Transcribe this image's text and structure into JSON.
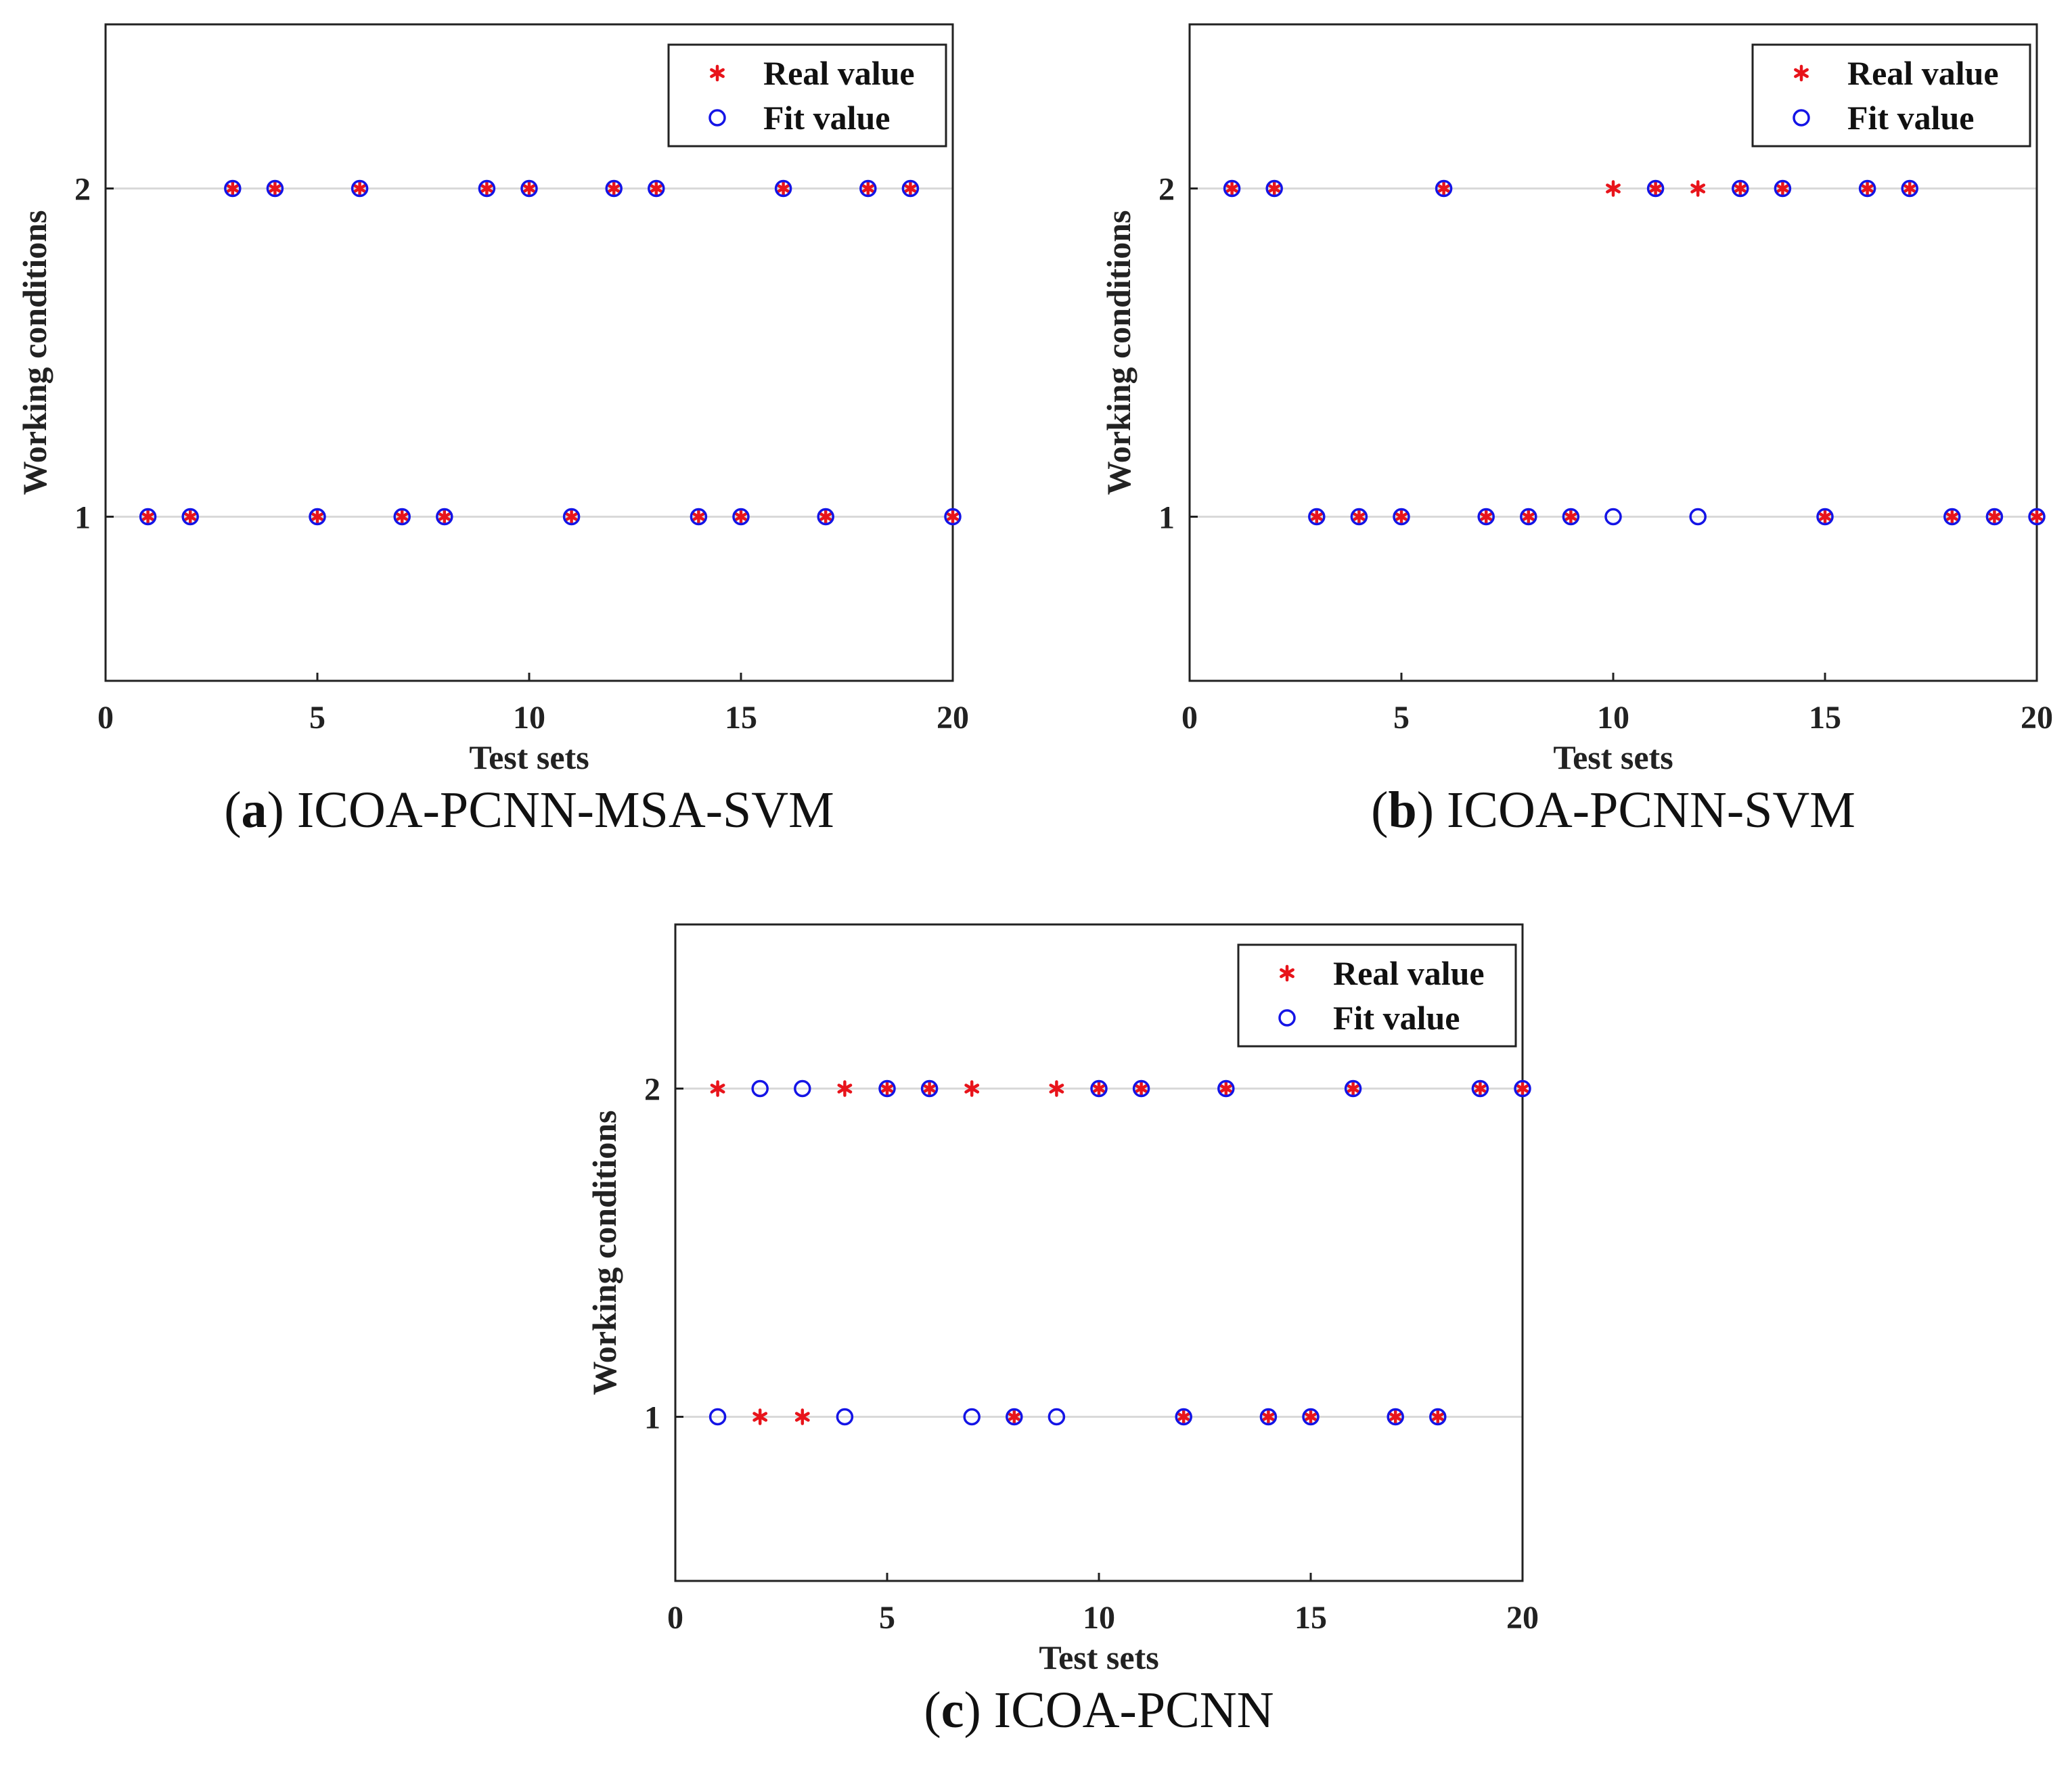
{
  "chart_data": [
    {
      "type": "scatter",
      "caption_letter": "a",
      "caption_text": "ICOA-PCNN-MSA-SVM",
      "xlabel": "Test sets",
      "ylabel": "Working conditions",
      "xlim": [
        0,
        20
      ],
      "ylim": [
        0.5,
        2.5
      ],
      "xticks": [
        0,
        5,
        10,
        15,
        20
      ],
      "yticks": [
        1,
        2
      ],
      "grid": "horizontal-at-ticks",
      "legend_position": "top-right",
      "series": [
        {
          "name": "Real value",
          "marker": "asterisk",
          "color": "#e8141b",
          "x": [
            1,
            2,
            3,
            4,
            5,
            6,
            7,
            8,
            9,
            10,
            11,
            12,
            13,
            14,
            15,
            16,
            17,
            18,
            19,
            20
          ],
          "y": [
            1,
            1,
            2,
            2,
            1,
            2,
            1,
            1,
            2,
            2,
            1,
            2,
            2,
            1,
            1,
            2,
            1,
            2,
            2,
            1
          ]
        },
        {
          "name": "Fit value",
          "marker": "circle",
          "color": "#1414e6",
          "x": [
            1,
            2,
            3,
            4,
            5,
            6,
            7,
            8,
            9,
            10,
            11,
            12,
            13,
            14,
            15,
            16,
            17,
            18,
            19,
            20
          ],
          "y": [
            1,
            1,
            2,
            2,
            1,
            2,
            1,
            1,
            2,
            2,
            1,
            2,
            2,
            1,
            1,
            2,
            1,
            2,
            2,
            1
          ]
        }
      ]
    },
    {
      "type": "scatter",
      "caption_letter": "b",
      "caption_text": "ICOA-PCNN-SVM",
      "xlabel": "Test sets",
      "ylabel": "Working conditions",
      "xlim": [
        0,
        20
      ],
      "ylim": [
        0.5,
        2.5
      ],
      "xticks": [
        0,
        5,
        10,
        15,
        20
      ],
      "yticks": [
        1,
        2
      ],
      "grid": "horizontal-at-ticks",
      "legend_position": "top-right",
      "series": [
        {
          "name": "Real value",
          "marker": "asterisk",
          "color": "#e8141b",
          "x": [
            1,
            2,
            3,
            4,
            5,
            6,
            7,
            8,
            9,
            10,
            11,
            12,
            13,
            14,
            15,
            16,
            17,
            18,
            19,
            20
          ],
          "y": [
            2,
            2,
            1,
            1,
            1,
            2,
            1,
            1,
            1,
            2,
            2,
            2,
            2,
            2,
            1,
            2,
            2,
            1,
            1,
            1
          ]
        },
        {
          "name": "Fit value",
          "marker": "circle",
          "color": "#1414e6",
          "x": [
            1,
            2,
            3,
            4,
            5,
            6,
            7,
            8,
            9,
            10,
            11,
            12,
            13,
            14,
            15,
            16,
            17,
            18,
            19,
            20
          ],
          "y": [
            2,
            2,
            1,
            1,
            1,
            2,
            1,
            1,
            1,
            1,
            2,
            1,
            2,
            2,
            1,
            2,
            2,
            1,
            1,
            1
          ]
        }
      ]
    },
    {
      "type": "scatter",
      "caption_letter": "c",
      "caption_text": "ICOA-PCNN",
      "xlabel": "Test sets",
      "ylabel": "Working conditions",
      "xlim": [
        0,
        20
      ],
      "ylim": [
        0.5,
        2.5
      ],
      "xticks": [
        0,
        5,
        10,
        15,
        20
      ],
      "yticks": [
        1,
        2
      ],
      "grid": "horizontal-at-ticks",
      "legend_position": "top-right",
      "series": [
        {
          "name": "Real value",
          "marker": "asterisk",
          "color": "#e8141b",
          "x": [
            1,
            2,
            3,
            4,
            5,
            6,
            7,
            8,
            9,
            10,
            11,
            12,
            13,
            14,
            15,
            16,
            17,
            18,
            19,
            20
          ],
          "y": [
            2,
            1,
            1,
            2,
            2,
            2,
            2,
            1,
            2,
            2,
            2,
            1,
            2,
            1,
            1,
            2,
            1,
            1,
            2,
            2
          ]
        },
        {
          "name": "Fit value",
          "marker": "circle",
          "color": "#1414e6",
          "x": [
            1,
            2,
            3,
            4,
            5,
            6,
            7,
            8,
            9,
            10,
            11,
            12,
            13,
            14,
            15,
            16,
            17,
            18,
            19,
            20
          ],
          "y": [
            1,
            2,
            2,
            1,
            2,
            2,
            1,
            1,
            1,
            2,
            2,
            1,
            2,
            1,
            1,
            2,
            1,
            1,
            2,
            2
          ]
        }
      ]
    }
  ]
}
